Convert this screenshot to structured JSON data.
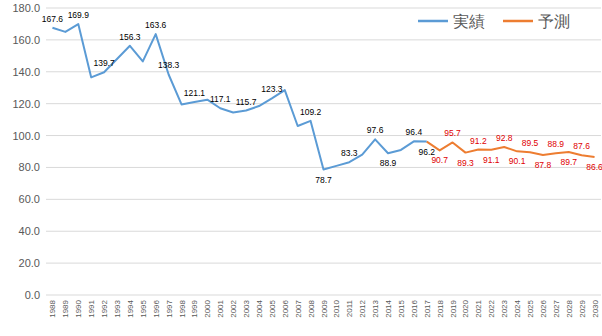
{
  "chart_data": {
    "type": "line",
    "categories": [
      "1988",
      "1989",
      "1990",
      "1991",
      "1992",
      "1993",
      "1994",
      "1995",
      "1996",
      "1997",
      "1998",
      "1999",
      "2000",
      "2001",
      "2002",
      "2003",
      "2004",
      "2005",
      "2006",
      "2007",
      "2008",
      "2009",
      "2010",
      "2011",
      "2012",
      "2013",
      "2014",
      "2015",
      "2016",
      "2017",
      "2018",
      "2019",
      "2020",
      "2021",
      "2022",
      "2023",
      "2024",
      "2025",
      "2026",
      "2027",
      "2028",
      "2029",
      "2030"
    ],
    "series": [
      {
        "name": "実績",
        "color": "#5b9bd5",
        "values": [
          167.6,
          165.0,
          169.9,
          136.5,
          139.7,
          148.0,
          156.3,
          146.5,
          163.6,
          138.3,
          119.5,
          121.1,
          122.5,
          117.1,
          114.5,
          115.7,
          118.5,
          123.3,
          128.5,
          106.0,
          109.2,
          78.7,
          81.0,
          83.3,
          88.0,
          97.6,
          88.9,
          91.0,
          96.4,
          96.2,
          null,
          null,
          null,
          null,
          null,
          null,
          null,
          null,
          null,
          null,
          null,
          null,
          null
        ],
        "value_labels": [
          "167.6",
          null,
          "169.9",
          null,
          "139.7",
          null,
          "156.3",
          null,
          "163.6",
          "138.3",
          null,
          "121.1",
          null,
          "117.1",
          null,
          "115.7",
          null,
          "123.3",
          null,
          null,
          "109.2",
          "78.7",
          null,
          "83.3",
          null,
          "97.6",
          "88.9",
          null,
          "96.4",
          "96.2",
          null,
          null,
          null,
          null,
          null,
          null,
          null,
          null,
          null,
          null,
          null,
          null,
          null
        ]
      },
      {
        "name": "予測",
        "color": "#ed7d31",
        "values": [
          null,
          null,
          null,
          null,
          null,
          null,
          null,
          null,
          null,
          null,
          null,
          null,
          null,
          null,
          null,
          null,
          null,
          null,
          null,
          null,
          null,
          null,
          null,
          null,
          null,
          null,
          null,
          null,
          null,
          96.2,
          90.7,
          95.7,
          89.3,
          91.2,
          91.1,
          92.8,
          90.1,
          89.5,
          87.8,
          88.9,
          89.7,
          87.6,
          86.6
        ],
        "value_labels": [
          null,
          null,
          null,
          null,
          null,
          null,
          null,
          null,
          null,
          null,
          null,
          null,
          null,
          null,
          null,
          null,
          null,
          null,
          null,
          null,
          null,
          null,
          null,
          null,
          null,
          null,
          null,
          null,
          null,
          null,
          "90.7",
          "95.7",
          "89.3",
          "91.2",
          "91.1",
          "92.8",
          "90.1",
          "89.5",
          "87.8",
          "88.9",
          "89.7",
          "87.6",
          "86.6"
        ]
      }
    ],
    "ylim": [
      0,
      180
    ],
    "yticks": [
      {
        "value": 0,
        "label": "0.0"
      },
      {
        "value": 20,
        "label": "20.0"
      },
      {
        "value": 40,
        "label": "40.0"
      },
      {
        "value": 60,
        "label": "60.0"
      },
      {
        "value": 80,
        "label": "80.0"
      },
      {
        "value": 100,
        "label": "100.0"
      },
      {
        "value": 120,
        "label": "120.0"
      },
      {
        "value": 140,
        "label": "140.0"
      },
      {
        "value": 160,
        "label": "160.0"
      },
      {
        "value": 180,
        "label": "180.0"
      }
    ],
    "grid": true,
    "legend": "top-right",
    "data_labels": true
  }
}
